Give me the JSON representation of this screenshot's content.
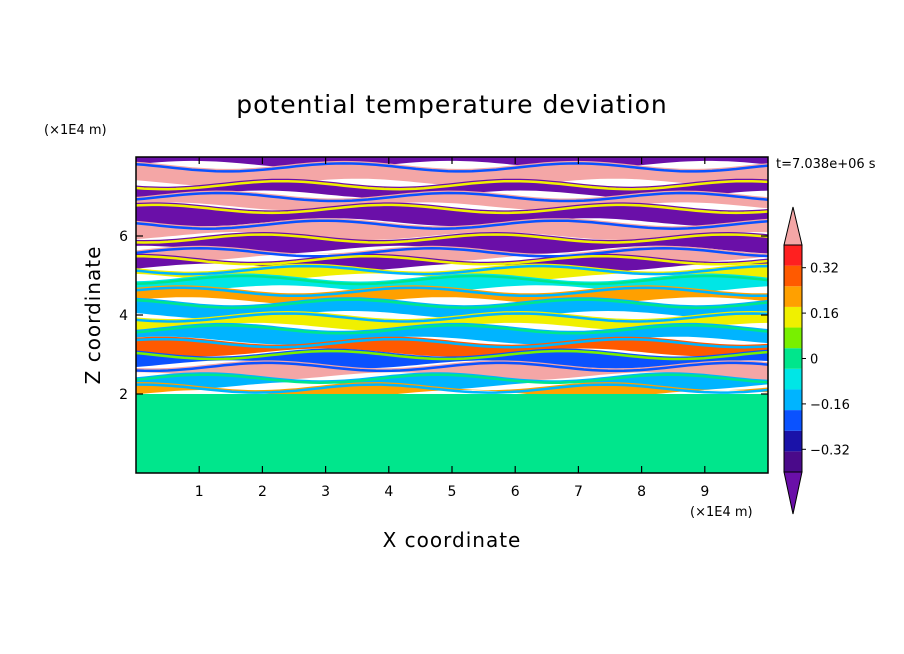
{
  "chart_data": {
    "type": "heatmap",
    "title": "potential temperature deviation",
    "xlabel": "X coordinate",
    "ylabel": "Z coordinate",
    "x_unit": "(×1E4 m)",
    "y_unit": "(×1E4 m)",
    "time_label": "t=7.038e+06 s",
    "xlim": [
      0,
      10
    ],
    "ylim": [
      0,
      8
    ],
    "x_ticks": [
      1,
      2,
      3,
      4,
      5,
      6,
      7,
      8,
      9
    ],
    "y_ticks": [
      2,
      4,
      6
    ],
    "colorbar": {
      "levels": [
        -0.4,
        -0.32,
        -0.24,
        -0.16,
        -0.08,
        0,
        0.08,
        0.16,
        0.24,
        0.32,
        0.4
      ],
      "labeled_levels": [
        0.32,
        0.16,
        0,
        -0.16,
        -0.32
      ],
      "colors_low_to_high": [
        "#4a0a8a",
        "#1a12a8",
        "#0a52ff",
        "#00b4ff",
        "#00e6e6",
        "#00e68c",
        "#78f000",
        "#f0f000",
        "#ffa000",
        "#ff5a00",
        "#ff2020"
      ],
      "under_color": "#6a0fa8",
      "over_color": "#f4a6a6"
    },
    "bands": [
      {
        "z_from": 7.8,
        "z_to": 8.0,
        "value": -0.45
      },
      {
        "z_from": 7.35,
        "z_to": 7.8,
        "value": 0.45
      },
      {
        "z_from": 7.05,
        "z_to": 7.35,
        "value": -0.45
      },
      {
        "z_from": 6.75,
        "z_to": 7.05,
        "value": 0.45
      },
      {
        "z_from": 6.35,
        "z_to": 6.75,
        "value": -0.45
      },
      {
        "z_from": 6.0,
        "z_to": 6.35,
        "value": 0.45
      },
      {
        "z_from": 5.65,
        "z_to": 6.0,
        "value": -0.45
      },
      {
        "z_from": 5.45,
        "z_to": 5.65,
        "value": 0.45
      },
      {
        "z_from": 5.2,
        "z_to": 5.45,
        "value": -0.45
      },
      {
        "z_from": 4.95,
        "z_to": 5.2,
        "value": 0.2
      },
      {
        "z_from": 4.65,
        "z_to": 4.95,
        "value": -0.05
      },
      {
        "z_from": 4.35,
        "z_to": 4.65,
        "value": 0.3
      },
      {
        "z_from": 4.0,
        "z_to": 4.35,
        "value": -0.12
      },
      {
        "z_from": 3.7,
        "z_to": 4.0,
        "value": 0.22
      },
      {
        "z_from": 3.35,
        "z_to": 3.7,
        "value": -0.1
      },
      {
        "z_from": 3.05,
        "z_to": 3.35,
        "value": 0.36
      },
      {
        "z_from": 2.75,
        "z_to": 3.05,
        "value": -0.2
      },
      {
        "z_from": 2.45,
        "z_to": 2.75,
        "value": 0.4
      },
      {
        "z_from": 2.2,
        "z_to": 2.45,
        "value": -0.14
      },
      {
        "z_from": 2.0,
        "z_to": 2.2,
        "value": 0.25
      },
      {
        "z_from": 0.0,
        "z_to": 2.0,
        "value": 0.06
      }
    ],
    "lower_layer_patches": [
      {
        "x": 0.9,
        "z": 0.9,
        "rx": 0.8,
        "rz": 0.5,
        "value": 0.0
      },
      {
        "x": 3.0,
        "z": 1.2,
        "rx": 0.9,
        "rz": 0.55,
        "value": 0.0
      },
      {
        "x": 4.8,
        "z": 0.8,
        "rx": 0.7,
        "rz": 0.6,
        "value": 0.0
      },
      {
        "x": 7.6,
        "z": 0.9,
        "rx": 0.9,
        "rz": 0.6,
        "value": 0.0
      },
      {
        "x": 9.0,
        "z": 0.7,
        "rx": 0.6,
        "rz": 0.5,
        "value": 0.0
      },
      {
        "x": 6.2,
        "z": 1.5,
        "rx": 0.5,
        "rz": 0.3,
        "value": 0.0
      }
    ]
  }
}
